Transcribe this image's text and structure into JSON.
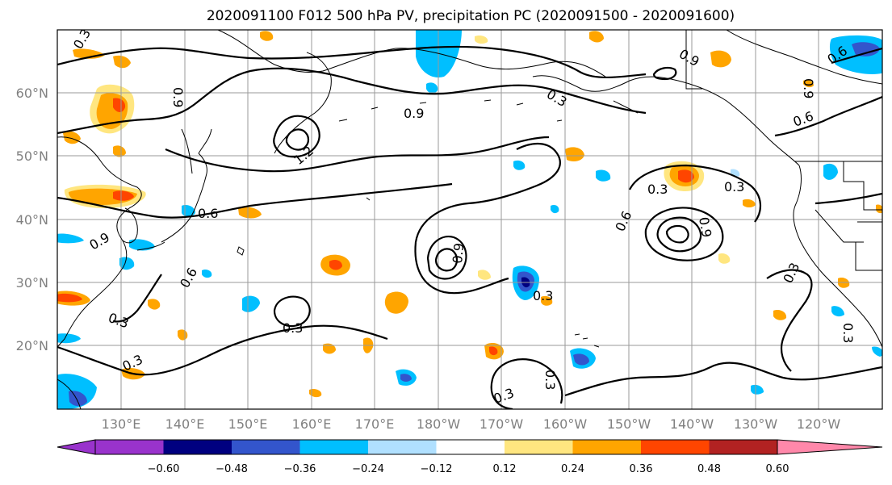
{
  "title": "2020091100 F012 500 hPa PV, precipitation PC (2020091500 - 2020091600)",
  "map": {
    "lon_labels": [
      "130°E",
      "140°E",
      "150°E",
      "160°E",
      "170°E",
      "180°W",
      "170°W",
      "160°W",
      "150°W",
      "140°W",
      "130°W",
      "120°W"
    ],
    "lat_labels": [
      "60°N",
      "50°N",
      "40°N",
      "30°N",
      "20°N"
    ],
    "lon_range": [
      120,
      250
    ],
    "lat_range": [
      10,
      70
    ]
  },
  "pv_contour_labels": [
    {
      "text": "0.3"
    },
    {
      "text": "0.9"
    },
    {
      "text": "0.9"
    },
    {
      "text": "1.2"
    },
    {
      "text": "0.6"
    },
    {
      "text": "0.9"
    },
    {
      "text": "0.6"
    },
    {
      "text": "0.3"
    },
    {
      "text": "0.3"
    },
    {
      "text": "0.3"
    },
    {
      "text": "0.9"
    },
    {
      "text": "0.3"
    },
    {
      "text": "0.3"
    },
    {
      "text": "0.3"
    },
    {
      "text": "0.6"
    },
    {
      "text": "0.9"
    },
    {
      "text": "0.3"
    },
    {
      "text": "0.3"
    },
    {
      "text": "0.9"
    },
    {
      "text": "0.6"
    },
    {
      "text": "0.9"
    },
    {
      "text": "0.6"
    },
    {
      "text": "0.3"
    },
    {
      "text": "0.3"
    },
    {
      "text": "0.3"
    }
  ],
  "colorbar": {
    "tick_labels": [
      "−0.60",
      "−0.48",
      "−0.36",
      "−0.24",
      "−0.12",
      "0.12",
      "0.24",
      "0.36",
      "0.48",
      "0.60"
    ],
    "colors": [
      "#9933cc",
      "#000080",
      "#3355cc",
      "#00bfff",
      "#b0e0ff",
      "#ffffff",
      "#ffe680",
      "#ffa500",
      "#ff4500",
      "#b22222",
      "#ff88aa"
    ]
  }
}
